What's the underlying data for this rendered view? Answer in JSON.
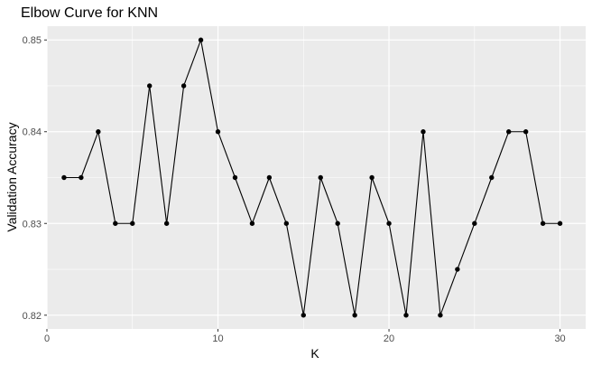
{
  "chart_data": {
    "type": "line",
    "title": "Elbow Curve for KNN",
    "xlabel": "K",
    "ylabel": "Validation Accuracy",
    "xlim": [
      0,
      31.5
    ],
    "ylim": [
      0.8185,
      0.8515
    ],
    "x_ticks": [
      0,
      10,
      20,
      30
    ],
    "x_tick_labels": [
      "0",
      "10",
      "20",
      "30"
    ],
    "y_ticks": [
      0.82,
      0.83,
      0.84,
      0.85
    ],
    "y_tick_labels": [
      "0.82",
      "0.83",
      "0.84",
      "0.85"
    ],
    "grid": true,
    "x": [
      1,
      2,
      3,
      4,
      5,
      6,
      7,
      8,
      9,
      10,
      11,
      12,
      13,
      14,
      15,
      16,
      17,
      18,
      19,
      20,
      21,
      22,
      23,
      24,
      25,
      26,
      27,
      28,
      29,
      30
    ],
    "y": [
      0.835,
      0.835,
      0.84,
      0.83,
      0.83,
      0.845,
      0.83,
      0.845,
      0.85,
      0.84,
      0.835,
      0.83,
      0.835,
      0.83,
      0.82,
      0.835,
      0.83,
      0.82,
      0.835,
      0.83,
      0.82,
      0.84,
      0.82,
      0.825,
      0.83,
      0.835,
      0.84,
      0.84,
      0.83,
      0.83
    ],
    "colors": {
      "panel_background": "#ebebeb",
      "grid_major": "#ffffff",
      "line": "#000000",
      "point": "#000000",
      "tick_label": "#4d4d4d",
      "tick_mark": "#333333"
    }
  }
}
